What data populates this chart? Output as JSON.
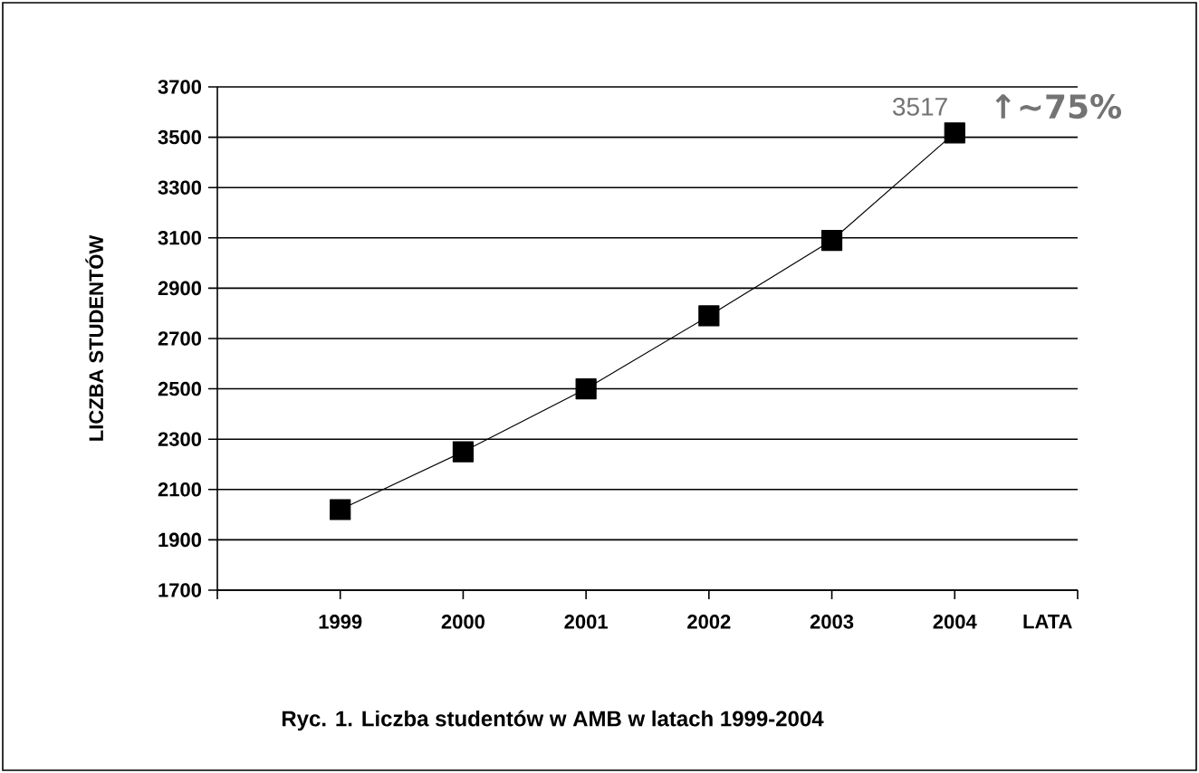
{
  "chart_data": {
    "type": "line",
    "title": "Ryc. 1. Liczba studentów w AMB w latach 1999-2004",
    "xlabel": "LATA",
    "ylabel": "LICZBA STUDENTÓW",
    "categories": [
      "1999",
      "2000",
      "2001",
      "2002",
      "2003",
      "2004"
    ],
    "series": [
      {
        "color": "#000000",
        "values": [
          2020,
          2250,
          2500,
          2790,
          3090,
          3517
        ]
      }
    ],
    "ylim": [
      1700,
      3700
    ],
    "yticks": [
      1700,
      1900,
      2100,
      2300,
      2500,
      2700,
      2900,
      3100,
      3300,
      3500,
      3700
    ],
    "grid": "y",
    "marker": "square",
    "line_style": "solid",
    "annotations": [
      {
        "text": "3517",
        "x": "2004",
        "y": 3517
      },
      "↑~75%"
    ]
  }
}
